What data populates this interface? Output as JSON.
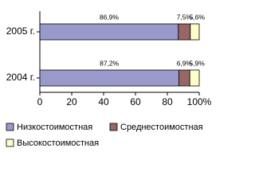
{
  "chart_data": {
    "type": "stacked-barh",
    "categories": [
      "2005 г.",
      "2004 г."
    ],
    "series": [
      {
        "name": "Низкостоимостная",
        "color": "#9999cc",
        "values": [
          86.9,
          87.2
        ],
        "value_labels": [
          "86,9%",
          "87,2%"
        ]
      },
      {
        "name": "Среднестоимостная",
        "color": "#996666",
        "values": [
          7.5,
          6.9
        ],
        "value_labels": [
          "7,5%",
          "6,9%"
        ]
      },
      {
        "name": "Высокостоимостная",
        "color": "#ffffcc",
        "values": [
          5.6,
          5.9
        ],
        "value_labels": [
          "5,6%",
          "5,9%"
        ]
      }
    ],
    "xlim": [
      0,
      100
    ],
    "xticks": [
      0,
      20,
      40,
      60,
      80,
      {
        "value": 100,
        "label": "100%"
      }
    ]
  }
}
